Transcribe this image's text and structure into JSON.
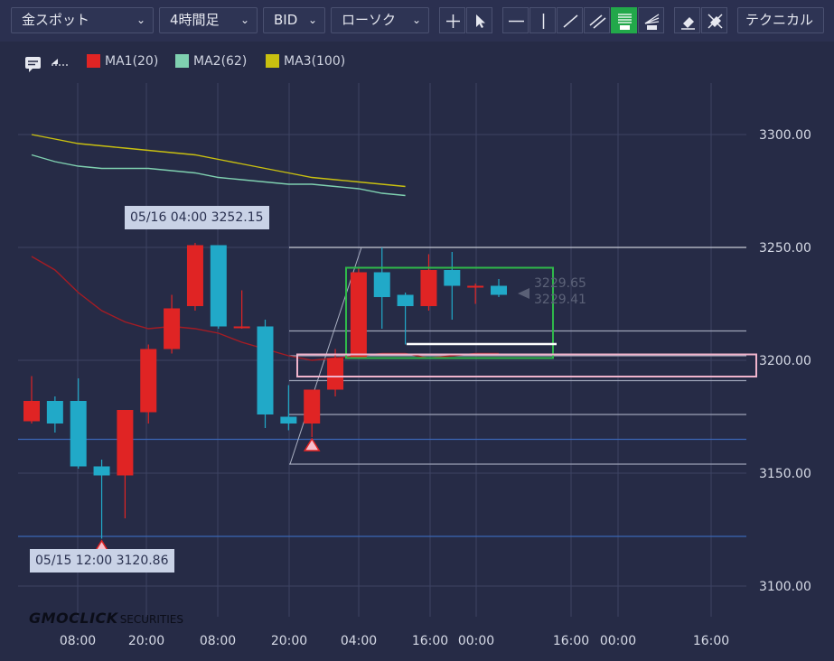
{
  "toolbar": {
    "symbol": "金スポット",
    "timeframe": "4時間足",
    "price_type": "BID",
    "chart_style": "ローソク",
    "technical": "テクニカル"
  },
  "legend": [
    {
      "label": "MA1(20)",
      "color": "#e02424"
    },
    {
      "label": "MA2(62)",
      "color": "#7fd0b0"
    },
    {
      "label": "MA3(100)",
      "color": "#c9c010"
    }
  ],
  "tooltips": {
    "high": "05/16 04:00 3252.15",
    "low": "05/15 12:00 3120.86"
  },
  "last_price": {
    "ask": "3229.65",
    "bid": "3229.41"
  },
  "logo": {
    "main": "GMOCLICK",
    "sub": "SECURITIES"
  },
  "colors": {
    "up": "#e02424",
    "down": "#21a9c8",
    "background": "#262b46",
    "box_green": "#2fb84a",
    "box_pink": "#f0b4cc"
  },
  "chart_data": {
    "type": "candlestick",
    "timeframe": "4H",
    "y_ticks": [
      "3300.00",
      "3250.00",
      "3200.00",
      "3150.00",
      "3100.00"
    ],
    "ylim": [
      3100,
      3300
    ],
    "x_ticks": [
      "08:00",
      "20:00",
      "08:00",
      "20:00",
      "04:00",
      "16:00",
      "00:00",
      "16:00",
      "00:00",
      "16:00"
    ],
    "candles": [
      {
        "o": 3173,
        "h": 3193,
        "l": 3172,
        "c": 3182
      },
      {
        "o": 3182,
        "h": 3184,
        "l": 3168,
        "c": 3172
      },
      {
        "o": 3182,
        "h": 3192,
        "l": 3152,
        "c": 3153
      },
      {
        "o": 3153,
        "h": 3156,
        "l": 3121,
        "c": 3149
      },
      {
        "o": 3149,
        "h": 3178,
        "l": 3130,
        "c": 3178
      },
      {
        "o": 3177,
        "h": 3207,
        "l": 3172,
        "c": 3205
      },
      {
        "o": 3205,
        "h": 3229,
        "l": 3203,
        "c": 3223
      },
      {
        "o": 3224,
        "h": 3252,
        "l": 3222,
        "c": 3251
      },
      {
        "o": 3251,
        "h": 3251,
        "l": 3214,
        "c": 3215
      },
      {
        "o": 3215,
        "h": 3231,
        "l": 3214,
        "c": 3215
      },
      {
        "o": 3215,
        "h": 3218,
        "l": 3170,
        "c": 3176
      },
      {
        "o": 3175,
        "h": 3189,
        "l": 3169,
        "c": 3172
      },
      {
        "o": 3172,
        "h": 3187,
        "l": 3166,
        "c": 3187
      },
      {
        "o": 3187,
        "h": 3205,
        "l": 3184,
        "c": 3201
      },
      {
        "o": 3201,
        "h": 3241,
        "l": 3202,
        "c": 3239
      },
      {
        "o": 3239,
        "h": 3250,
        "l": 3214,
        "c": 3228
      },
      {
        "o": 3229,
        "h": 3230,
        "l": 3207,
        "c": 3224
      },
      {
        "o": 3224,
        "h": 3247,
        "l": 3222,
        "c": 3240
      },
      {
        "o": 3240,
        "h": 3248,
        "l": 3218,
        "c": 3233
      },
      {
        "o": 3233,
        "h": 3234,
        "l": 3225,
        "c": 3233
      },
      {
        "o": 3233,
        "h": 3236,
        "l": 3228,
        "c": 3229
      }
    ],
    "ma1": [
      3246,
      3240,
      3230,
      3222,
      3217,
      3214,
      3215,
      3214,
      3212,
      3208,
      3205,
      3202,
      3200,
      3201,
      3202,
      3203,
      3203,
      3201,
      3202,
      3203,
      3203
    ],
    "ma2_start": 7,
    "ma2": [
      3291,
      3288,
      3286,
      3285,
      3285,
      3285,
      3284,
      3283,
      3281,
      3280,
      3279,
      3278,
      3278,
      3277,
      3276,
      3274,
      3273
    ],
    "ma3_start": 7,
    "ma3": [
      3300,
      3298,
      3296,
      3295,
      3294,
      3293,
      3292,
      3291,
      3289,
      3287,
      3285,
      3283,
      3281,
      3280,
      3279,
      3278,
      3277
    ],
    "fib_levels": [
      3250,
      3213,
      3202,
      3191,
      3176,
      3154
    ],
    "horizontal_lines": [
      3165,
      3122
    ],
    "trend_line": {
      "from_candle": 12,
      "from_price": 3154,
      "to_candle": 15,
      "to_price": 3250
    },
    "arrows": [
      {
        "candle": 3,
        "price": 3120.86
      },
      {
        "candle": 12,
        "price": 3166
      }
    ],
    "green_box": {
      "candle_from": 14,
      "candle_to": 23,
      "price_top": 3241,
      "price_bottom": 3201
    },
    "pink_zone": {
      "price_top": 3201,
      "price_bottom": 3192
    },
    "white_line": {
      "candle_from": 16,
      "candle_to": 23,
      "price": 3207
    }
  }
}
